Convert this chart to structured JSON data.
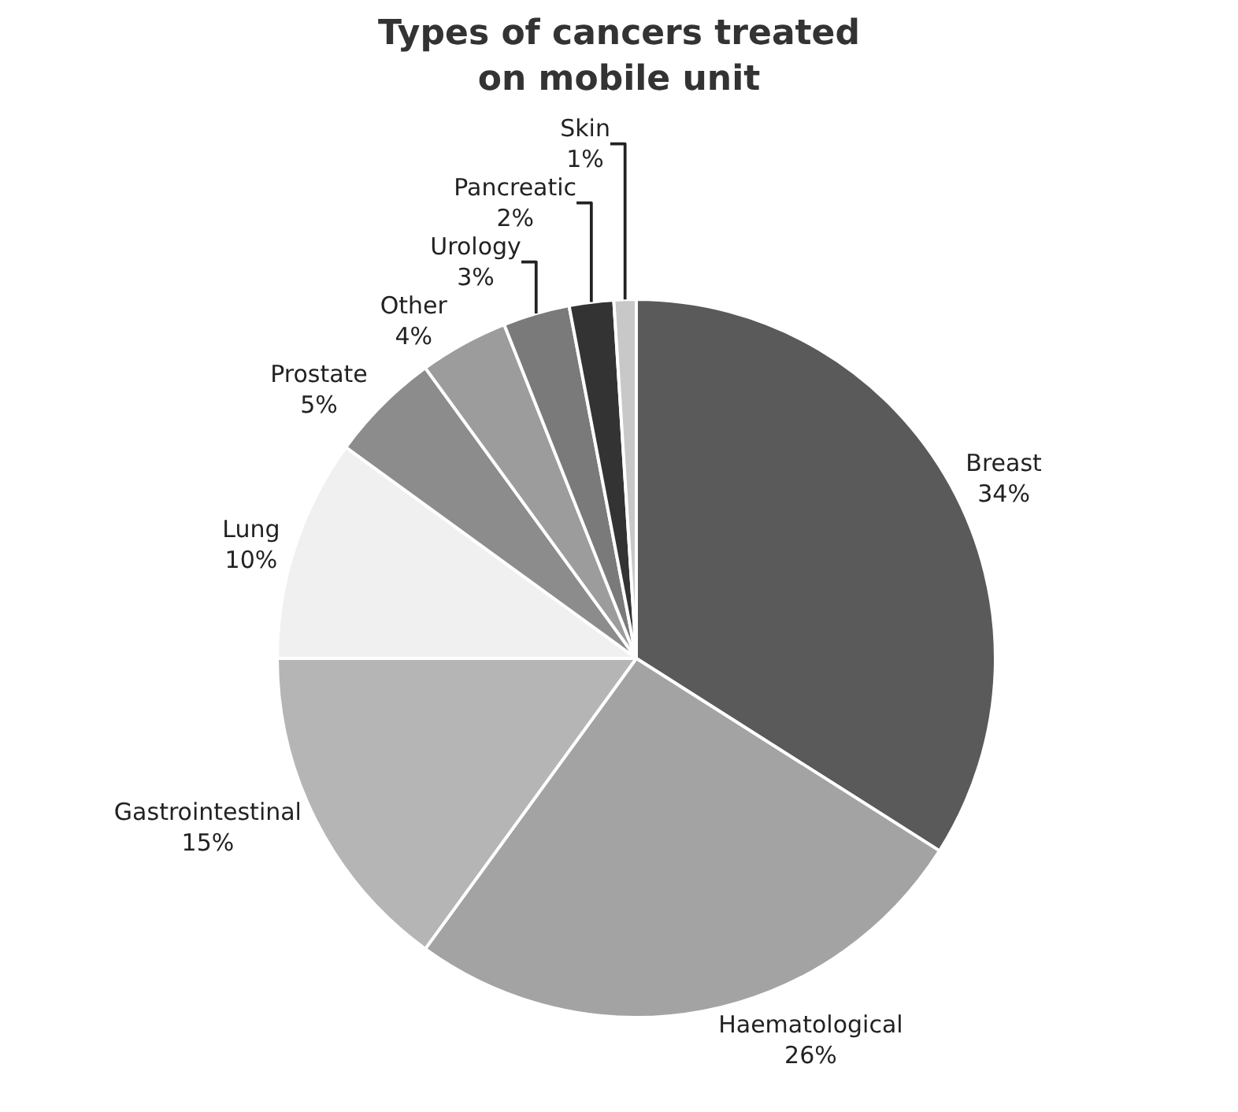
{
  "chart_data": {
    "type": "pie",
    "title": "Types of cancers treated on mobile unit",
    "categories": [
      "Breast",
      "Haematological",
      "Gastrointestinal",
      "Lung",
      "Prostate",
      "Other",
      "Urology",
      "Pancreatic",
      "Skin"
    ],
    "values": [
      34,
      26,
      15,
      10,
      5,
      4,
      3,
      2,
      1
    ],
    "value_labels": [
      "34%",
      "26%",
      "15%",
      "10%",
      "5%",
      "4%",
      "3%",
      "2%",
      "1%"
    ],
    "colors": [
      "#5a5a5a",
      "#a3a3a3",
      "#b5b5b5",
      "#f0f0f0",
      "#8c8c8c",
      "#9c9c9c",
      "#7a7a7a",
      "#333333",
      "#c8c8c8"
    ],
    "legend": false
  }
}
